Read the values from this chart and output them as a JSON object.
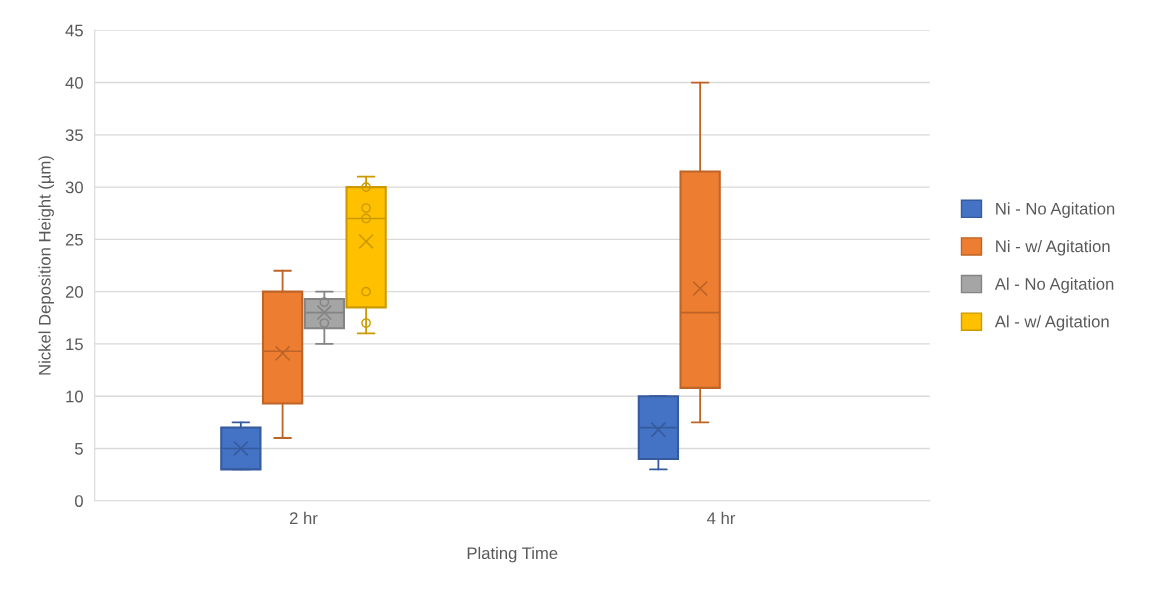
{
  "chart_data": {
    "type": "box",
    "xlabel": "Plating Time",
    "ylabel": "Nickel Deposition Height (µm)",
    "categories": [
      "2 hr",
      "4 hr"
    ],
    "series": [
      {
        "name": "Ni - No Agitation",
        "color": "#4472c4",
        "boxes": [
          {
            "low": 3,
            "q1": 3,
            "median": 5,
            "q3": 7,
            "high": 7.5,
            "mean": 5
          },
          {
            "low": 3,
            "q1": 4,
            "median": 7,
            "q3": 10,
            "high": 10,
            "mean": 6.8
          }
        ]
      },
      {
        "name": "Ni - w/ Agitation",
        "color": "#ed7d31",
        "boxes": [
          {
            "low": 6,
            "q1": 9.3,
            "median": 14.3,
            "q3": 20,
            "high": 22,
            "mean": 14.1
          },
          {
            "low": 7.5,
            "q1": 10.8,
            "median": 18,
            "q3": 31.5,
            "high": 40,
            "mean": 20.3
          }
        ]
      },
      {
        "name": "Al - No Agitation",
        "color": "#a5a5a5",
        "boxes": [
          {
            "low": 15,
            "q1": 16.5,
            "median": 18,
            "q3": 19.3,
            "high": 20,
            "mean": 18,
            "outliers": [
              19,
              17
            ]
          },
          null
        ]
      },
      {
        "name": "Al - w/ Agitation",
        "color": "#ffc000",
        "boxes": [
          {
            "low": 16,
            "q1": 18.5,
            "median": 27,
            "q3": 30,
            "high": 31,
            "mean": 24.8,
            "outliers": [
              30,
              28,
              27,
              20,
              17
            ]
          },
          null
        ]
      }
    ],
    "ylim": [
      0,
      45
    ],
    "yticks": [
      0,
      5,
      10,
      15,
      20,
      25,
      30,
      35,
      40,
      45
    ],
    "grid": "y",
    "legend": "right"
  }
}
